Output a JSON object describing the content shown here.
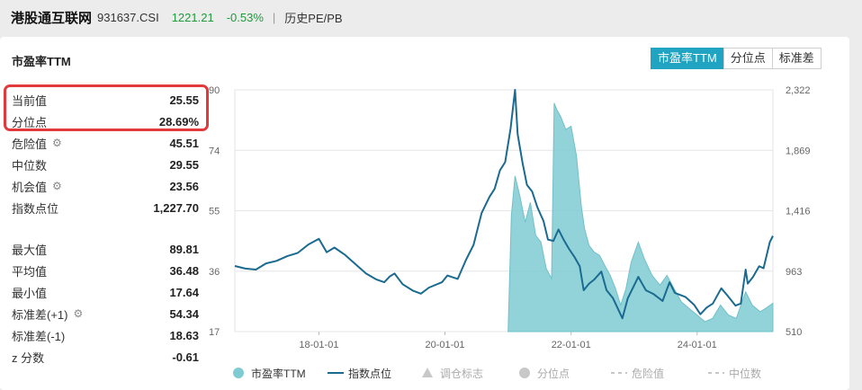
{
  "header": {
    "name": "港股通互联网",
    "code": "931637.CSI",
    "price": "1221.21",
    "change": "-0.53%",
    "separator": "|",
    "subtitle": "历史PE/PB"
  },
  "card": {
    "title": "市盈率TTM",
    "tabs": [
      {
        "label": "市盈率TTM",
        "active": true
      },
      {
        "label": "分位点",
        "active": false
      },
      {
        "label": "标准差",
        "active": false
      }
    ]
  },
  "stats": {
    "current": {
      "label": "当前值",
      "value": "25.55"
    },
    "percentile": {
      "label": "分位点",
      "value": "28.69%"
    },
    "danger": {
      "label": "危险值",
      "value": "45.51"
    },
    "median": {
      "label": "中位数",
      "value": "29.55"
    },
    "opportunity": {
      "label": "机会值",
      "value": "23.56"
    },
    "index_point": {
      "label": "指数点位",
      "value": "1,227.70"
    },
    "max": {
      "label": "最大值",
      "value": "89.81"
    },
    "mean": {
      "label": "平均值",
      "value": "36.48"
    },
    "min": {
      "label": "最小值",
      "value": "17.64"
    },
    "std_plus": {
      "label": "标准差(+1)",
      "value": "54.34"
    },
    "std_minus": {
      "label": "标准差(-1)",
      "value": "18.63"
    },
    "zscore": {
      "label": "z 分数",
      "value": "-0.61"
    }
  },
  "colors": {
    "accent": "#21a3c2",
    "pe_area": "#7fcbd3",
    "index_line": "#1b6a8f",
    "down_green": "#1e9a3c",
    "highlight_red": "#e23a3a"
  },
  "chart_data": {
    "type": "area",
    "left_axis_ticks": [
      "90",
      "74",
      "55",
      "36",
      "17"
    ],
    "right_axis_ticks": [
      "2,322",
      "1,869",
      "1,416",
      "963",
      "510"
    ],
    "x_tick_labels": [
      "18-01-01",
      "20-01-01",
      "22-01-01",
      "24-01-01"
    ],
    "ylim_left": [
      17,
      90
    ],
    "ylim_right": [
      510,
      2322
    ],
    "x_range": [
      "2016-09-01",
      "2025-03-15"
    ],
    "legend": [
      {
        "name": "市盈率TTM",
        "icon": "circle",
        "color": "#7fcbd3"
      },
      {
        "name": "指数点位",
        "icon": "line",
        "color": "#1b6a8f"
      },
      {
        "name": "调仓标志",
        "icon": "triangle",
        "color": "#c8c8c8"
      },
      {
        "name": "分位点",
        "icon": "circle",
        "color": "#c8c8c8"
      },
      {
        "name": "危险值",
        "icon": "dash",
        "color": "#c8c8c8"
      },
      {
        "name": "中位数",
        "icon": "dash",
        "color": "#c8c8c8"
      }
    ],
    "series": [
      {
        "name": "市盈率TTM",
        "axis": "left",
        "points": [
          [
            "2021-01-01",
            17
          ],
          [
            "2021-01-20",
            52
          ],
          [
            "2021-02-10",
            64
          ],
          [
            "2021-03-10",
            58
          ],
          [
            "2021-04-10",
            50
          ],
          [
            "2021-05-10",
            56
          ],
          [
            "2021-06-10",
            46
          ],
          [
            "2021-07-10",
            44
          ],
          [
            "2021-08-10",
            36
          ],
          [
            "2021-09-10",
            33
          ],
          [
            "2021-09-25",
            86
          ],
          [
            "2021-10-10",
            84
          ],
          [
            "2021-11-01",
            82
          ],
          [
            "2021-12-01",
            78
          ],
          [
            "2022-01-01",
            79
          ],
          [
            "2022-02-01",
            70
          ],
          [
            "2022-03-01",
            55
          ],
          [
            "2022-03-20",
            48
          ],
          [
            "2022-04-15",
            43
          ],
          [
            "2022-05-15",
            41
          ],
          [
            "2022-06-15",
            40
          ],
          [
            "2022-07-15",
            37
          ],
          [
            "2022-08-15",
            34
          ],
          [
            "2022-09-15",
            30
          ],
          [
            "2022-10-15",
            25
          ],
          [
            "2022-11-15",
            30
          ],
          [
            "2022-12-15",
            38
          ],
          [
            "2023-01-25",
            44
          ],
          [
            "2023-03-01",
            39
          ],
          [
            "2023-04-15",
            34
          ],
          [
            "2023-05-31",
            31
          ],
          [
            "2023-07-10",
            34
          ],
          [
            "2023-08-20",
            30
          ],
          [
            "2023-10-01",
            26
          ],
          [
            "2023-11-15",
            24
          ],
          [
            "2024-01-01",
            22
          ],
          [
            "2024-02-15",
            20
          ],
          [
            "2024-03-31",
            21
          ],
          [
            "2024-05-15",
            25
          ],
          [
            "2024-06-30",
            22
          ],
          [
            "2024-08-15",
            21
          ],
          [
            "2024-10-08",
            29
          ],
          [
            "2024-11-15",
            25
          ],
          [
            "2024-12-31",
            23
          ],
          [
            "2025-02-01",
            24
          ],
          [
            "2025-03-15",
            25.55
          ]
        ]
      },
      {
        "name": "指数点位",
        "axis": "right",
        "points": [
          [
            "2016-09-01",
            1002
          ],
          [
            "2016-11-01",
            982
          ],
          [
            "2017-01-01",
            975
          ],
          [
            "2017-03-01",
            1021
          ],
          [
            "2017-05-01",
            1040
          ],
          [
            "2017-07-01",
            1075
          ],
          [
            "2017-09-01",
            1100
          ],
          [
            "2017-11-01",
            1163
          ],
          [
            "2018-01-01",
            1205
          ],
          [
            "2018-02-15",
            1105
          ],
          [
            "2018-04-01",
            1140
          ],
          [
            "2018-06-01",
            1085
          ],
          [
            "2018-08-01",
            1015
          ],
          [
            "2018-10-01",
            945
          ],
          [
            "2018-12-01",
            900
          ],
          [
            "2019-01-15",
            880
          ],
          [
            "2019-02-15",
            923
          ],
          [
            "2019-03-15",
            945
          ],
          [
            "2019-05-01",
            865
          ],
          [
            "2019-07-01",
            816
          ],
          [
            "2019-08-15",
            794
          ],
          [
            "2019-10-01",
            840
          ],
          [
            "2019-12-15",
            880
          ],
          [
            "2020-01-15",
            930
          ],
          [
            "2020-03-15",
            905
          ],
          [
            "2020-05-01",
            1045
          ],
          [
            "2020-06-15",
            1160
          ],
          [
            "2020-08-01",
            1400
          ],
          [
            "2020-09-15",
            1520
          ],
          [
            "2020-10-15",
            1580
          ],
          [
            "2020-11-15",
            1720
          ],
          [
            "2020-12-15",
            1780
          ],
          [
            "2021-01-15",
            2030
          ],
          [
            "2021-02-10",
            2322
          ],
          [
            "2021-02-25",
            1990
          ],
          [
            "2021-03-25",
            1780
          ],
          [
            "2021-04-20",
            1610
          ],
          [
            "2021-05-20",
            1560
          ],
          [
            "2021-06-20",
            1440
          ],
          [
            "2021-07-25",
            1340
          ],
          [
            "2021-08-20",
            1200
          ],
          [
            "2021-09-20",
            1190
          ],
          [
            "2021-10-20",
            1275
          ],
          [
            "2021-11-20",
            1195
          ],
          [
            "2021-12-20",
            1130
          ],
          [
            "2022-01-20",
            1070
          ],
          [
            "2022-02-20",
            1000
          ],
          [
            "2022-03-15",
            820
          ],
          [
            "2022-04-15",
            870
          ],
          [
            "2022-05-15",
            900
          ],
          [
            "2022-06-25",
            960
          ],
          [
            "2022-07-25",
            820
          ],
          [
            "2022-09-01",
            760
          ],
          [
            "2022-10-25",
            610
          ],
          [
            "2022-11-25",
            760
          ],
          [
            "2023-01-25",
            920
          ],
          [
            "2023-03-10",
            820
          ],
          [
            "2023-04-25",
            790
          ],
          [
            "2023-06-15",
            740
          ],
          [
            "2023-07-25",
            880
          ],
          [
            "2023-08-25",
            800
          ],
          [
            "2023-10-25",
            770
          ],
          [
            "2023-12-15",
            710
          ],
          [
            "2024-01-20",
            640
          ],
          [
            "2024-02-25",
            690
          ],
          [
            "2024-04-01",
            720
          ],
          [
            "2024-05-20",
            835
          ],
          [
            "2024-06-25",
            780
          ],
          [
            "2024-08-10",
            705
          ],
          [
            "2024-09-10",
            720
          ],
          [
            "2024-10-08",
            975
          ],
          [
            "2024-10-20",
            870
          ],
          [
            "2024-11-20",
            920
          ],
          [
            "2024-12-25",
            1000
          ],
          [
            "2025-01-20",
            985
          ],
          [
            "2025-02-25",
            1180
          ],
          [
            "2025-03-15",
            1227.7
          ]
        ]
      }
    ]
  }
}
